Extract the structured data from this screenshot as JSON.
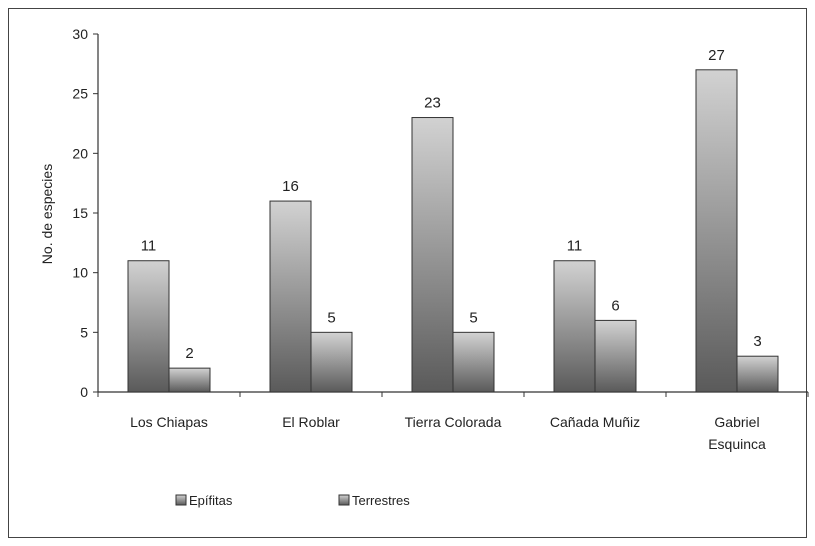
{
  "chart_data": {
    "type": "bar",
    "title": "",
    "xlabel": "",
    "ylabel": "No. de especies",
    "ylim": [
      0,
      30
    ],
    "yticks": [
      0,
      5,
      10,
      15,
      20,
      25,
      30
    ],
    "categories": [
      [
        "Los Chiapas"
      ],
      [
        "El Roblar"
      ],
      [
        "Tierra Colorada"
      ],
      [
        "Cañada Muñiz"
      ],
      [
        "Gabriel",
        "Esquinca"
      ]
    ],
    "series": [
      {
        "name": "Epífitas",
        "values": [
          11,
          16,
          23,
          11,
          27
        ]
      },
      {
        "name": "Terrestres",
        "values": [
          2,
          5,
          5,
          6,
          3
        ]
      }
    ],
    "grid": false,
    "legend_position": "bottom",
    "colors": {
      "bar_top": "#d2d2d2",
      "bar_bottom": "#5a5a5a",
      "bar_stroke": "#333333",
      "axis": "#333333"
    }
  }
}
